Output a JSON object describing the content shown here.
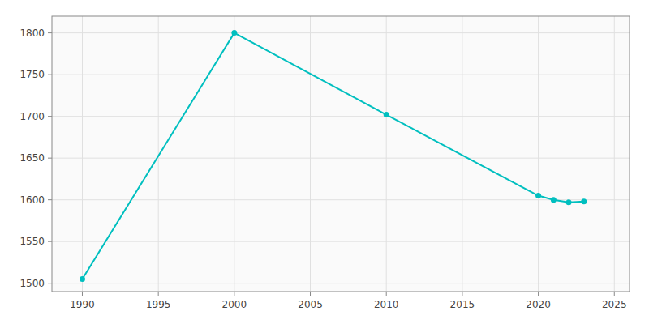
{
  "chart_data": {
    "type": "line",
    "x": [
      1990,
      2000,
      2010,
      2020,
      2021,
      2022,
      2023
    ],
    "values": [
      1505,
      1800,
      1702,
      1605,
      1600,
      1597,
      1598
    ],
    "color": "#00BFBF",
    "marker": "circle",
    "xlim": [
      1988,
      2026
    ],
    "ylim": [
      1490,
      1820
    ],
    "xticks": [
      1990,
      1995,
      2000,
      2005,
      2010,
      2015,
      2020,
      2025
    ],
    "yticks": [
      1500,
      1550,
      1600,
      1650,
      1700,
      1750,
      1800
    ],
    "grid": true
  }
}
